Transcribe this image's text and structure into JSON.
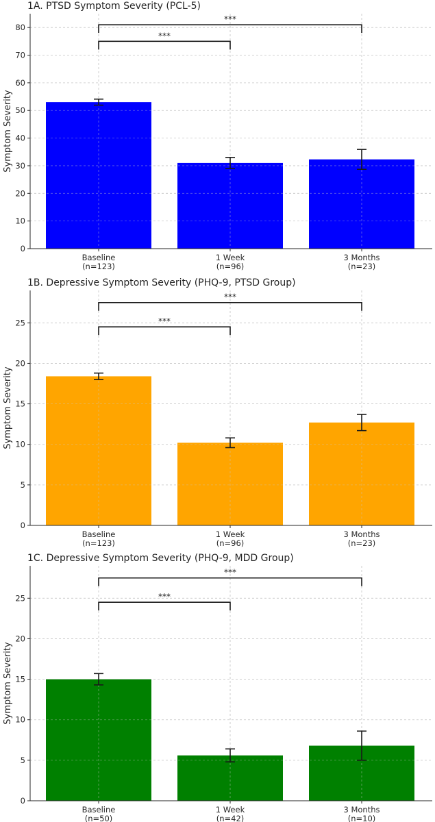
{
  "chart_data": [
    {
      "type": "bar",
      "title": "1A. PTSD Symptom Severity (PCL-5)",
      "ylabel": "Symptom Severity",
      "xlabel": "",
      "ylim": [
        0,
        85
      ],
      "yticks": [
        0,
        10,
        20,
        30,
        40,
        50,
        60,
        70,
        80
      ],
      "categories": [
        "Baseline",
        "1 Week",
        "3 Months"
      ],
      "category_n": [
        "(n=123)",
        "(n=96)",
        "(n=23)"
      ],
      "color": "#0000ff",
      "values": [
        53,
        31,
        32.3
      ],
      "errors": [
        1.1,
        2.0,
        3.6
      ],
      "significance": [
        {
          "from": 0,
          "to": 1,
          "label": "***",
          "level": 75
        },
        {
          "from": 0,
          "to": 2,
          "label": "***",
          "level": 81
        }
      ],
      "grid": true
    },
    {
      "type": "bar",
      "title": "1B. Depressive Symptom Severity (PHQ-9, PTSD Group)",
      "ylabel": "Symptom Severity",
      "xlabel": "",
      "ylim": [
        0,
        29
      ],
      "yticks": [
        0,
        5,
        10,
        15,
        20,
        25
      ],
      "categories": [
        "Baseline",
        "1 Week",
        "3 Months"
      ],
      "category_n": [
        "(n=123)",
        "(n=96)",
        "(n=23)"
      ],
      "color": "#ffa500",
      "values": [
        18.4,
        10.2,
        12.7
      ],
      "errors": [
        0.4,
        0.6,
        1.0
      ],
      "significance": [
        {
          "from": 0,
          "to": 1,
          "label": "***",
          "level": 24.5
        },
        {
          "from": 0,
          "to": 2,
          "label": "***",
          "level": 27.5
        }
      ],
      "grid": true
    },
    {
      "type": "bar",
      "title": "1C. Depressive Symptom Severity (PHQ-9, MDD Group)",
      "ylabel": "Symptom Severity",
      "xlabel": "",
      "ylim": [
        0,
        29
      ],
      "yticks": [
        0,
        5,
        10,
        15,
        20,
        25
      ],
      "categories": [
        "Baseline",
        "1 Week",
        "3 Months"
      ],
      "category_n": [
        "(n=50)",
        "(n=42)",
        "(n=10)"
      ],
      "color": "#008000",
      "values": [
        15,
        5.6,
        6.8
      ],
      "errors": [
        0.7,
        0.8,
        1.8
      ],
      "significance": [
        {
          "from": 0,
          "to": 1,
          "label": "***",
          "level": 24.5
        },
        {
          "from": 0,
          "to": 2,
          "label": "***",
          "level": 27.5
        }
      ],
      "grid": true
    }
  ]
}
